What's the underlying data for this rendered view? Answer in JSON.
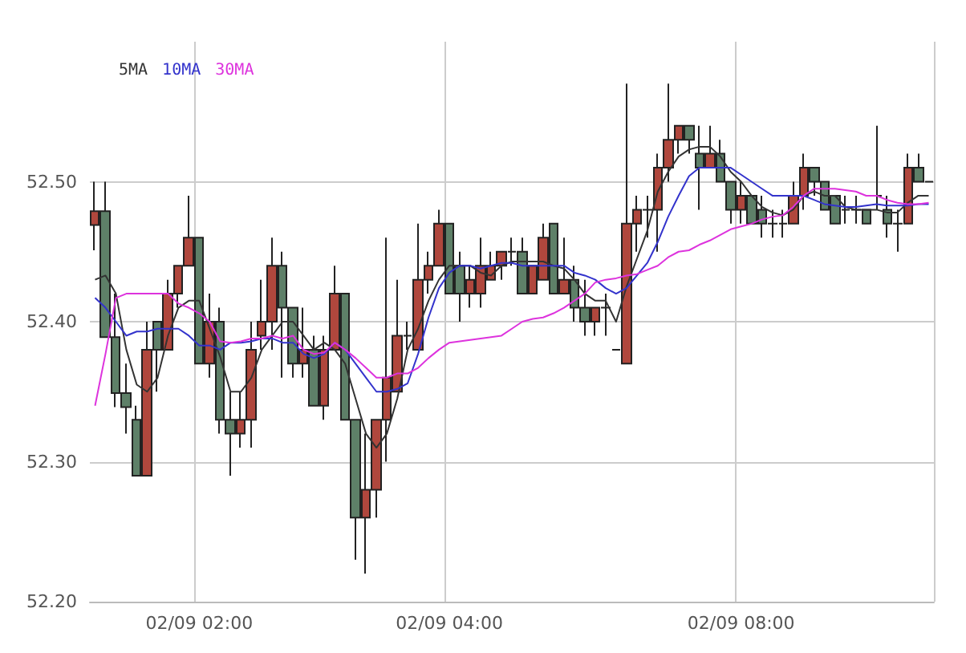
{
  "chart_data": {
    "type": "candlestick",
    "categories": [
      null,
      null,
      null,
      null,
      null,
      null,
      null,
      null,
      null,
      null,
      "02/09 02:00",
      null,
      null,
      null,
      null,
      null,
      null,
      null,
      null,
      null,
      null,
      null,
      null,
      null,
      null,
      null,
      null,
      null,
      null,
      null,
      null,
      null,
      null,
      null,
      "02/09 04:00",
      null,
      null,
      null,
      null,
      null,
      null,
      null,
      null,
      null,
      null,
      null,
      null,
      null,
      null,
      null,
      null,
      null,
      null,
      null,
      null,
      null,
      null,
      null,
      null,
      null,
      null,
      null,
      "02/09 08:00",
      null,
      null,
      null,
      null,
      null,
      null,
      null,
      null,
      null,
      null,
      null,
      null,
      null,
      null,
      null,
      null,
      null,
      null
    ],
    "ohlc": [
      [
        52.469,
        52.5,
        52.451,
        52.479
      ],
      [
        52.479,
        52.5,
        52.389,
        52.389
      ],
      [
        52.389,
        52.42,
        52.339,
        52.349
      ],
      [
        52.349,
        52.37,
        52.32,
        52.339
      ],
      [
        52.33,
        52.34,
        52.29,
        52.29
      ],
      [
        52.29,
        52.4,
        52.29,
        52.38
      ],
      [
        52.4,
        52.4,
        52.35,
        52.38
      ],
      [
        52.38,
        52.43,
        52.38,
        52.42
      ],
      [
        52.42,
        52.44,
        52.41,
        52.44
      ],
      [
        52.44,
        52.49,
        52.44,
        52.46
      ],
      [
        52.46,
        52.46,
        52.37,
        52.37
      ],
      [
        52.37,
        52.42,
        52.36,
        52.4
      ],
      [
        52.4,
        52.41,
        52.32,
        52.33
      ],
      [
        52.33,
        52.35,
        52.29,
        52.32
      ],
      [
        52.32,
        52.35,
        52.31,
        52.33
      ],
      [
        52.33,
        52.4,
        52.31,
        52.38
      ],
      [
        52.39,
        52.43,
        52.38,
        52.4
      ],
      [
        52.4,
        52.46,
        52.38,
        52.44
      ],
      [
        52.44,
        52.45,
        52.36,
        52.41
      ],
      [
        52.41,
        52.41,
        52.36,
        52.37
      ],
      [
        52.37,
        52.41,
        52.36,
        52.38
      ],
      [
        52.38,
        52.39,
        52.34,
        52.34
      ],
      [
        52.34,
        52.39,
        52.33,
        52.38
      ],
      [
        52.38,
        52.44,
        52.38,
        52.42
      ],
      [
        52.42,
        52.42,
        52.33,
        52.33
      ],
      [
        52.33,
        52.33,
        52.23,
        52.26
      ],
      [
        52.26,
        52.32,
        52.22,
        52.28
      ],
      [
        52.28,
        52.33,
        52.26,
        52.33
      ],
      [
        52.33,
        52.46,
        52.3,
        52.36
      ],
      [
        52.35,
        52.43,
        52.35,
        52.39
      ],
      [
        52.39,
        52.4,
        52.38,
        52.39
      ],
      [
        52.38,
        52.47,
        52.38,
        52.43
      ],
      [
        52.43,
        52.45,
        52.42,
        52.44
      ],
      [
        52.44,
        52.48,
        52.44,
        52.47
      ],
      [
        52.47,
        52.47,
        52.42,
        52.42
      ],
      [
        52.44,
        52.45,
        52.4,
        52.42
      ],
      [
        52.42,
        52.44,
        52.41,
        52.43
      ],
      [
        52.42,
        52.46,
        52.41,
        52.44
      ],
      [
        52.43,
        52.45,
        52.43,
        52.44
      ],
      [
        52.44,
        52.45,
        52.43,
        52.45
      ],
      [
        52.45,
        52.46,
        52.44,
        52.45
      ],
      [
        52.45,
        52.46,
        52.42,
        52.42
      ],
      [
        52.42,
        52.44,
        52.42,
        52.44
      ],
      [
        52.43,
        52.47,
        52.43,
        52.46
      ],
      [
        52.47,
        52.47,
        52.42,
        52.42
      ],
      [
        52.42,
        52.46,
        52.42,
        52.43
      ],
      [
        52.43,
        52.44,
        52.4,
        52.41
      ],
      [
        52.41,
        52.43,
        52.39,
        52.4
      ],
      [
        52.4,
        52.41,
        52.39,
        52.41
      ],
      [
        52.41,
        52.42,
        52.39,
        52.41
      ],
      [
        52.38,
        52.38,
        52.38,
        52.38
      ],
      [
        52.37,
        52.57,
        52.37,
        52.47
      ],
      [
        52.47,
        52.49,
        52.45,
        52.48
      ],
      [
        52.48,
        52.49,
        52.46,
        52.48
      ],
      [
        52.48,
        52.52,
        52.45,
        52.51
      ],
      [
        52.51,
        52.57,
        52.5,
        52.53
      ],
      [
        52.53,
        52.54,
        52.52,
        52.54
      ],
      [
        52.54,
        52.54,
        52.52,
        52.53
      ],
      [
        52.52,
        52.54,
        52.48,
        52.51
      ],
      [
        52.51,
        52.54,
        52.51,
        52.52
      ],
      [
        52.52,
        52.53,
        52.5,
        52.5
      ],
      [
        52.5,
        52.5,
        52.47,
        52.48
      ],
      [
        52.48,
        52.5,
        52.47,
        52.49
      ],
      [
        52.49,
        52.49,
        52.47,
        52.47
      ],
      [
        52.48,
        52.49,
        52.46,
        52.47
      ],
      [
        52.47,
        52.48,
        52.46,
        52.47
      ],
      [
        52.47,
        52.48,
        52.46,
        52.47
      ],
      [
        52.47,
        52.5,
        52.47,
        52.49
      ],
      [
        52.49,
        52.52,
        52.48,
        52.51
      ],
      [
        52.51,
        52.51,
        52.49,
        52.5
      ],
      [
        52.5,
        52.5,
        52.48,
        52.48
      ],
      [
        52.49,
        52.49,
        52.47,
        52.47
      ],
      [
        52.48,
        52.49,
        52.47,
        52.48
      ],
      [
        52.48,
        52.49,
        52.47,
        52.48
      ],
      [
        52.48,
        52.48,
        52.47,
        52.47
      ],
      [
        52.49,
        52.54,
        52.48,
        52.49
      ],
      [
        52.48,
        52.49,
        52.46,
        52.47
      ],
      [
        52.47,
        52.48,
        52.45,
        52.47
      ],
      [
        52.47,
        52.52,
        52.47,
        52.51
      ],
      [
        52.51,
        52.52,
        52.5,
        52.5
      ],
      [
        52.5,
        52.5,
        52.5,
        52.5
      ]
    ],
    "colors": [
      "#b0473d",
      "#5e8068",
      "#5e8068",
      "#5e8068",
      "#5e8068",
      "#b0473d",
      "#5e8068",
      "#b0473d",
      "#b0473d",
      "#b0473d",
      "#5e8068",
      "#b0473d",
      "#5e8068",
      "#5e8068",
      "#b0473d",
      "#b0473d",
      "#b0473d",
      "#b0473d",
      "#5e8068",
      "#5e8068",
      "#b0473d",
      "#5e8068",
      "#b0473d",
      "#b0473d",
      "#5e8068",
      "#5e8068",
      "#b0473d",
      "#b0473d",
      "#b0473d",
      "#b0473d",
      "#222222",
      "#b0473d",
      "#b0473d",
      "#b0473d",
      "#5e8068",
      "#5e8068",
      "#b0473d",
      "#b0473d",
      "#b0473d",
      "#b0473d",
      "#222222",
      "#5e8068",
      "#b0473d",
      "#b0473d",
      "#5e8068",
      "#b0473d",
      "#5e8068",
      "#5e8068",
      "#b0473d",
      "#222222",
      "#222222",
      "#b0473d",
      "#b0473d",
      "#222222",
      "#b0473d",
      "#b0473d",
      "#b0473d",
      "#5e8068",
      "#5e8068",
      "#b0473d",
      "#5e8068",
      "#5e8068",
      "#b0473d",
      "#5e8068",
      "#5e8068",
      "#222222",
      "#222222",
      "#b0473d",
      "#b0473d",
      "#5e8068",
      "#5e8068",
      "#5e8068",
      "#222222",
      "#222222",
      "#5e8068",
      "#222222",
      "#5e8068",
      "#222222",
      "#b0473d",
      "#5e8068",
      "#222222"
    ],
    "series": [
      {
        "name": "5MA",
        "type": "line",
        "color": "#333333",
        "values": [
          52.43,
          52.433,
          52.42,
          52.38,
          52.355,
          52.35,
          52.36,
          52.39,
          52.41,
          52.415,
          52.415,
          52.395,
          52.375,
          52.35,
          52.35,
          52.36,
          52.38,
          52.39,
          52.4,
          52.4,
          52.39,
          52.38,
          52.385,
          52.38,
          52.37,
          52.345,
          52.32,
          52.31,
          52.32,
          52.345,
          52.38,
          52.395,
          52.415,
          52.43,
          52.44,
          52.44,
          52.44,
          52.435,
          52.433,
          52.44,
          52.443,
          52.443,
          52.443,
          52.443,
          52.44,
          52.438,
          52.43,
          52.42,
          52.415,
          52.415,
          52.4,
          52.425,
          52.445,
          52.465,
          52.493,
          52.507,
          52.518,
          52.523,
          52.525,
          52.525,
          52.518,
          52.507,
          52.5,
          52.49,
          52.482,
          52.478,
          52.476,
          52.48,
          52.49,
          52.493,
          52.49,
          52.49,
          52.482,
          52.48,
          52.48,
          52.48,
          52.478,
          52.478,
          52.485,
          52.49,
          52.49
        ]
      },
      {
        "name": "10MA",
        "type": "line",
        "color": "#3333cc",
        "values": [
          52.417,
          52.41,
          52.4,
          52.39,
          52.393,
          52.393,
          52.395,
          52.395,
          52.395,
          52.39,
          52.383,
          52.383,
          52.38,
          52.385,
          52.385,
          52.386,
          52.388,
          52.388,
          52.385,
          52.385,
          52.377,
          52.374,
          52.377,
          52.385,
          52.38,
          52.37,
          52.36,
          52.35,
          52.35,
          52.352,
          52.356,
          52.377,
          52.403,
          52.424,
          52.435,
          52.44,
          52.44,
          52.438,
          52.44,
          52.442,
          52.442,
          52.44,
          52.44,
          52.44,
          52.44,
          52.44,
          52.435,
          52.433,
          52.43,
          52.424,
          52.42,
          52.424,
          52.433,
          52.442,
          52.457,
          52.475,
          52.49,
          52.504,
          52.51,
          52.51,
          52.51,
          52.51,
          52.505,
          52.5,
          52.495,
          52.49,
          52.49,
          52.49,
          52.49,
          52.487,
          52.484,
          52.483,
          52.482,
          52.482,
          52.483,
          52.484,
          52.483,
          52.483,
          52.483,
          52.484,
          52.484
        ]
      },
      {
        "name": "30MA",
        "type": "line",
        "color": "#dd33dd",
        "values": [
          52.34,
          52.377,
          52.417,
          52.42,
          52.42,
          52.42,
          52.42,
          52.42,
          52.413,
          52.41,
          52.406,
          52.4,
          52.386,
          52.385,
          52.386,
          52.388,
          52.388,
          52.39,
          52.388,
          52.39,
          52.38,
          52.377,
          52.378,
          52.385,
          52.38,
          52.374,
          52.367,
          52.36,
          52.36,
          52.363,
          52.363,
          52.367,
          52.374,
          52.38,
          52.385,
          52.386,
          52.387,
          52.388,
          52.389,
          52.39,
          52.395,
          52.4,
          52.402,
          52.403,
          52.406,
          52.41,
          52.415,
          52.42,
          52.428,
          52.43,
          52.431,
          52.433,
          52.434,
          52.437,
          52.44,
          52.446,
          52.45,
          52.451,
          52.455,
          52.458,
          52.462,
          52.466,
          52.468,
          52.47,
          52.473,
          52.475,
          52.476,
          52.482,
          52.49,
          52.495,
          52.495,
          52.495,
          52.494,
          52.493,
          52.49,
          52.49,
          52.487,
          52.485,
          52.484,
          52.484,
          52.485
        ]
      }
    ],
    "ylim": [
      52.2,
      52.6
    ],
    "yticks": [
      {
        "value": 52.2,
        "label": "52.20"
      },
      {
        "value": 52.3,
        "label": "52.30"
      },
      {
        "value": 52.4,
        "label": "52.40"
      },
      {
        "value": 52.5,
        "label": "52.50"
      }
    ],
    "grid": true,
    "legend": "top left",
    "marker": "none"
  }
}
